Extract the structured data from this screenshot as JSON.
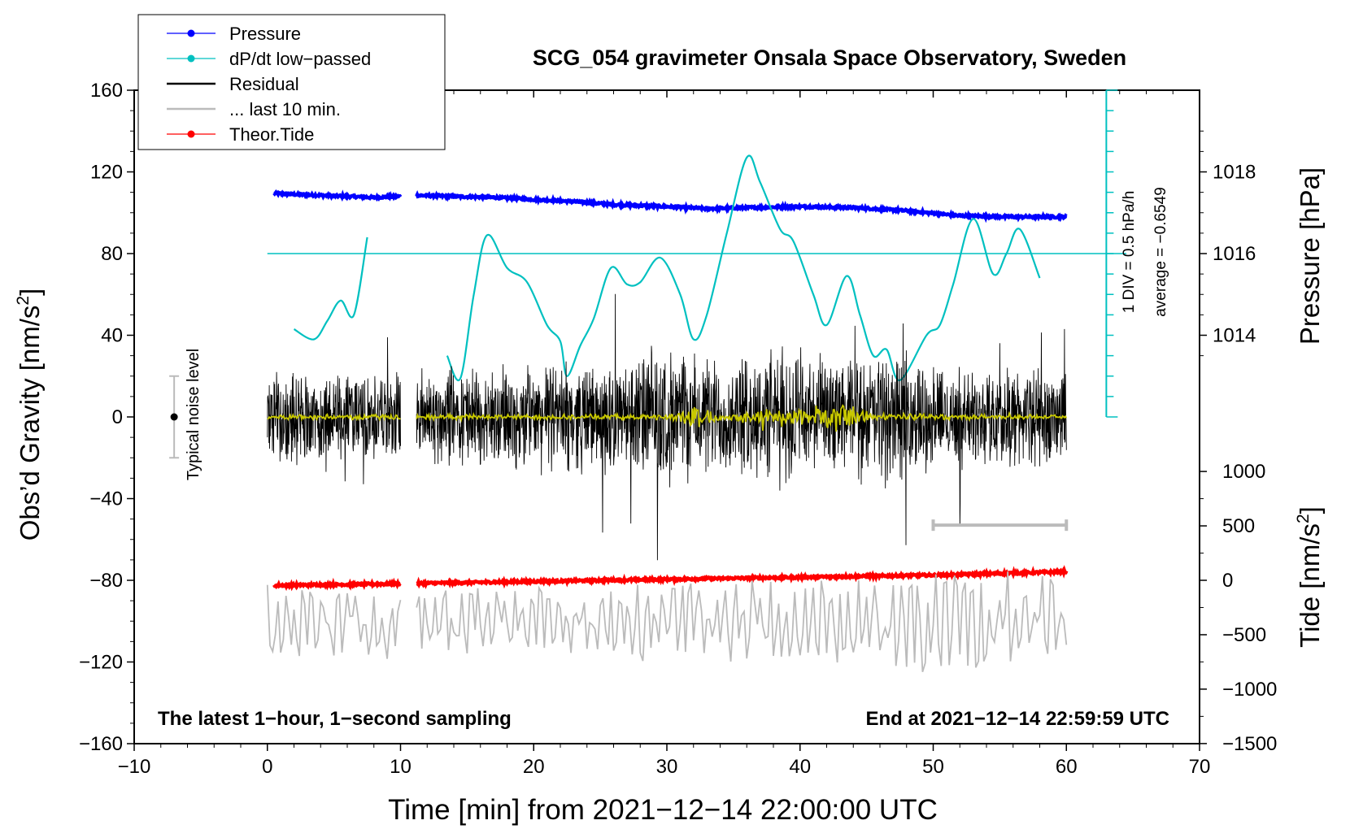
{
  "chart_data": {
    "type": "line",
    "title": "SCG_054 gravimeter Onsala Space Observatory, Sweden",
    "xlabel": "Time [min] from 2021−12−14 22:00:00 UTC",
    "ylabel_left": "Obs’d Gravity [nm/s",
    "ylabel_left_sup": "2",
    "ylabel_left_end": "]",
    "ylabel_right_pressure": "Pressure [hPa]",
    "ylabel_right_tide": "Tide [nm/s",
    "ylabel_right_tide_sup": "2",
    "ylabel_right_tide_end": "]",
    "xlim": [
      -10,
      70
    ],
    "ylim": [
      -160,
      160
    ],
    "x_ticks": [
      {
        "value": -10,
        "label": "−10"
      },
      {
        "value": 0,
        "label": "0"
      },
      {
        "value": 10,
        "label": "10"
      },
      {
        "value": 20,
        "label": "20"
      },
      {
        "value": 30,
        "label": "30"
      },
      {
        "value": 40,
        "label": "40"
      },
      {
        "value": 50,
        "label": "50"
      },
      {
        "value": 60,
        "label": "60"
      },
      {
        "value": 70,
        "label": "70"
      }
    ],
    "y_ticks": [
      {
        "value": 160,
        "label": "160"
      },
      {
        "value": 120,
        "label": "120"
      },
      {
        "value": 80,
        "label": "80"
      },
      {
        "value": 40,
        "label": "40"
      },
      {
        "value": 0,
        "label": "0"
      },
      {
        "value": -40,
        "label": "−40"
      },
      {
        "value": -80,
        "label": "−80"
      },
      {
        "value": -120,
        "label": "−120"
      },
      {
        "value": -160,
        "label": "−160"
      }
    ],
    "pressure_axis": {
      "ticks": [
        {
          "value": 1018,
          "label": "1018"
        },
        {
          "value": 1016,
          "label": "1016"
        },
        {
          "value": 1014,
          "label": "1014"
        }
      ],
      "gravity_at_1016": 80,
      "gravity_per_hPa": 20
    },
    "tide_axis": {
      "ticks": [
        {
          "value": 1000,
          "label": "1000"
        },
        {
          "value": 500,
          "label": "500"
        },
        {
          "value": 0,
          "label": "0"
        },
        {
          "value": -500,
          "label": "−500"
        },
        {
          "value": -1000,
          "label": "−1000"
        },
        {
          "value": -1500,
          "label": "−1500"
        }
      ],
      "gravity_at_zero": -80,
      "gravity_per_1000": 53.3
    },
    "dpdt_scale": {
      "label_div": "1 DIV = 0.5 hPa/h",
      "label_avg": "average = −0.6549",
      "x": 63,
      "y_bottom": 0,
      "y_top": 160,
      "divisions": 16
    },
    "legend": {
      "position": "top-left",
      "entries": [
        {
          "name": "Pressure",
          "color": "#0000ff",
          "marker": true
        },
        {
          "name": "dP/dt low−passed",
          "color": "#00c0c0",
          "marker": true
        },
        {
          "name": "Residual",
          "color": "#000000",
          "marker": false
        },
        {
          "name": "... last 10 min.",
          "color": "#bbbbbb",
          "marker": false
        },
        {
          "name": "Theor.Tide",
          "color": "#ff0000",
          "marker": true
        }
      ]
    },
    "noise_level": {
      "label": "Typical noise level",
      "x": -7,
      "y": 0,
      "low": -20,
      "high": 20
    },
    "last10_bar": {
      "x0": 50,
      "x1": 60,
      "y": -53
    },
    "dpdt_baseline": 80,
    "note_left": "The latest 1−hour, 1−second sampling",
    "note_right": "End at 2021−12−14 22:59:59 UTC",
    "series": [
      {
        "name": "Pressure",
        "color": "#0000ff",
        "unit_axis": "gravity",
        "segments": [
          [
            [
              0.5,
              109.5
            ],
            [
              2,
              109
            ],
            [
              4,
              108.5
            ],
            [
              6,
              108
            ],
            [
              8,
              107.5
            ],
            [
              10,
              108
            ]
          ],
          [
            [
              11.2,
              108.5
            ],
            [
              14,
              108
            ],
            [
              17,
              107.5
            ],
            [
              20,
              106.5
            ],
            [
              23,
              105.5
            ],
            [
              26,
              104
            ],
            [
              30,
              103
            ],
            [
              33,
              102
            ],
            [
              36,
              102.5
            ],
            [
              40,
              103
            ],
            [
              44,
              102.5
            ],
            [
              48,
              101
            ],
            [
              52,
              98.5
            ],
            [
              56,
              98
            ],
            [
              60,
              98
            ]
          ]
        ]
      },
      {
        "name": "dP/dt low-passed",
        "color": "#00c0c0",
        "unit_axis": "gravity",
        "segments": [
          [
            [
              2,
              43
            ],
            [
              3.5,
              38
            ],
            [
              4.5,
              47
            ],
            [
              5.5,
              57
            ],
            [
              6.5,
              50
            ],
            [
              7.5,
              88
            ]
          ],
          [
            [
              13.5,
              30
            ],
            [
              14.5,
              19
            ],
            [
              15.5,
              60
            ],
            [
              16.5,
              89
            ],
            [
              18,
              73
            ],
            [
              19.5,
              66
            ],
            [
              21,
              45
            ],
            [
              22,
              37
            ],
            [
              22.5,
              20
            ],
            [
              23.5,
              35
            ],
            [
              24.5,
              48
            ],
            [
              25.8,
              73
            ],
            [
              27,
              65
            ],
            [
              28,
              66
            ],
            [
              29.5,
              78
            ],
            [
              31,
              60
            ],
            [
              32,
              38
            ],
            [
              33,
              50
            ],
            [
              34.5,
              90
            ],
            [
              36,
              127
            ],
            [
              37,
              115
            ],
            [
              38.5,
              92
            ],
            [
              39.5,
              86
            ],
            [
              41,
              60
            ],
            [
              42,
              45
            ],
            [
              43.5,
              69
            ],
            [
              44.5,
              50
            ],
            [
              45.5,
              30
            ],
            [
              46.5,
              33
            ],
            [
              47.5,
              18
            ],
            [
              49.5,
              40
            ],
            [
              50.5,
              45
            ],
            [
              51.5,
              65
            ],
            [
              53,
              97
            ],
            [
              54.5,
              70
            ],
            [
              55.5,
              80
            ],
            [
              56.5,
              92
            ],
            [
              58,
              68
            ]
          ]
        ]
      },
      {
        "name": "Theor.Tide",
        "color": "#ff0000",
        "unit_axis": "gravity",
        "segments": [
          [
            [
              0.5,
              -82.5
            ],
            [
              10,
              -81.7
            ]
          ],
          [
            [
              11.2,
              -81.5
            ],
            [
              30,
              -79.5
            ],
            [
              50,
              -77.5
            ],
            [
              60,
              -75.8
            ]
          ]
        ]
      },
      {
        "name": "Residual",
        "color": "#000000",
        "unit_axis": "gravity",
        "noise": true,
        "baseline": 0,
        "segments": [
          [
            0,
            10
          ],
          [
            11.2,
            60
          ]
        ],
        "amplitude": [
          [
            0,
            25
          ],
          [
            10,
            25
          ],
          [
            11.2,
            28
          ],
          [
            27,
            30
          ],
          [
            28.5,
            38
          ],
          [
            35,
            32
          ],
          [
            39,
            40
          ],
          [
            42,
            30
          ],
          [
            47,
            38
          ],
          [
            50,
            26
          ],
          [
            60,
            28
          ]
        ]
      },
      {
        "name": "Residual low-passed",
        "color": "#c8c800",
        "unit_axis": "gravity",
        "noise": true,
        "baseline": 0,
        "segments": [
          [
            0,
            10
          ],
          [
            11.2,
            60
          ]
        ],
        "amplitude": [
          [
            0,
            1.5
          ],
          [
            30,
            1.5
          ],
          [
            32,
            7
          ],
          [
            34,
            2
          ],
          [
            43,
            8
          ],
          [
            46,
            2
          ],
          [
            60,
            1
          ]
        ]
      },
      {
        "name": "... last 10 min.",
        "color": "#bbbbbb",
        "unit_axis": "gravity",
        "noise": true,
        "baseline": -100,
        "segments": [
          [
            0,
            10
          ],
          [
            11.2,
            60
          ]
        ],
        "amplitude": [
          [
            0,
            18
          ],
          [
            30,
            20
          ],
          [
            46,
            22
          ],
          [
            50,
            30
          ],
          [
            60,
            22
          ]
        ]
      }
    ]
  }
}
